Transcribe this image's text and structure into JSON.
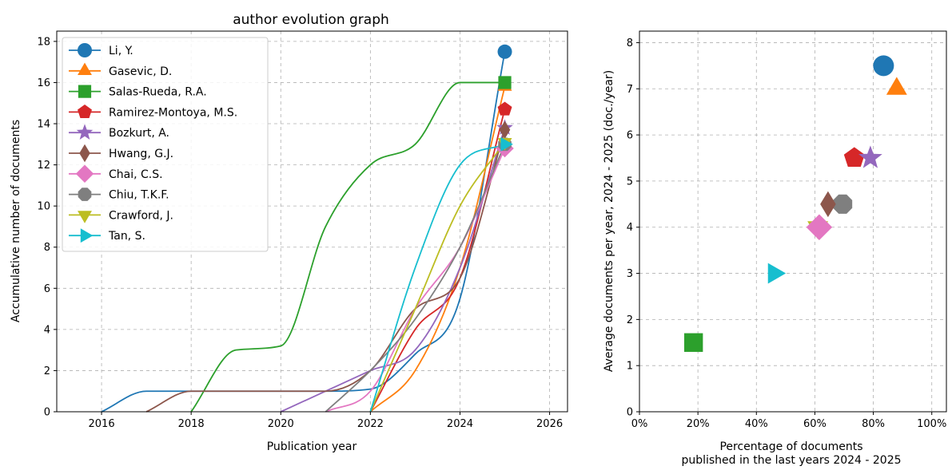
{
  "chart_data": [
    {
      "type": "line",
      "title": "author evolution graph",
      "xlabel": "Publication year",
      "ylabel": "Accumulative number of documents",
      "xlim": [
        2015,
        2026.4
      ],
      "ylim": [
        0,
        18.5
      ],
      "xticks": [
        2016,
        2018,
        2020,
        2022,
        2024,
        2026
      ],
      "yticks": [
        0,
        2,
        4,
        6,
        8,
        10,
        12,
        14,
        16,
        18
      ],
      "grid": true,
      "legend": "top-left",
      "series": [
        {
          "name": "Li, Y.",
          "color": "#1f77b4",
          "marker": "circle",
          "points": [
            [
              2016,
              0
            ],
            [
              2017,
              1
            ],
            [
              2018,
              1
            ],
            [
              2019,
              1
            ],
            [
              2020,
              1
            ],
            [
              2021,
              1
            ],
            [
              2022,
              1.1
            ],
            [
              2023,
              2.8
            ],
            [
              2024,
              5.5
            ],
            [
              2025,
              17.5
            ]
          ]
        },
        {
          "name": "Gasevic, D.",
          "color": "#ff7f0e",
          "marker": "triangle-up",
          "points": [
            [
              2022,
              0
            ],
            [
              2023,
              2
            ],
            [
              2024,
              7
            ],
            [
              2025,
              15.8
            ]
          ]
        },
        {
          "name": "Salas-Rueda, R.A.",
          "color": "#2ca02c",
          "marker": "square",
          "points": [
            [
              2018,
              0
            ],
            [
              2019,
              3
            ],
            [
              2020,
              3.2
            ],
            [
              2021,
              9
            ],
            [
              2022,
              12
            ],
            [
              2023,
              13
            ],
            [
              2024,
              16
            ],
            [
              2025,
              16
            ]
          ]
        },
        {
          "name": "Ramirez-Montoya, M.S.",
          "color": "#d62728",
          "marker": "pentagon",
          "points": [
            [
              2022,
              0
            ],
            [
              2023,
              4
            ],
            [
              2024,
              6.5
            ],
            [
              2025,
              14.7
            ]
          ]
        },
        {
          "name": "Bozkurt, A.",
          "color": "#9467bd",
          "marker": "star",
          "points": [
            [
              2020,
              0
            ],
            [
              2021,
              1
            ],
            [
              2022,
              2
            ],
            [
              2023,
              3
            ],
            [
              2024,
              7
            ],
            [
              2025,
              13.8
            ]
          ]
        },
        {
          "name": "Hwang, G.J.",
          "color": "#8c564b",
          "marker": "diamond-thin",
          "points": [
            [
              2017,
              0
            ],
            [
              2018,
              1
            ],
            [
              2019,
              1
            ],
            [
              2020,
              1
            ],
            [
              2021,
              1
            ],
            [
              2022,
              2
            ],
            [
              2023,
              5
            ],
            [
              2024,
              6.5
            ],
            [
              2025,
              13.7
            ]
          ]
        },
        {
          "name": "Chai, C.S.",
          "color": "#e377c2",
          "marker": "diamond",
          "points": [
            [
              2021,
              0
            ],
            [
              2022,
              1
            ],
            [
              2023,
              5
            ],
            [
              2024,
              8
            ],
            [
              2025,
              12.8
            ]
          ]
        },
        {
          "name": "Chiu, T.K.F.",
          "color": "#7f7f7f",
          "marker": "octagon",
          "points": [
            [
              2021,
              0
            ],
            [
              2022,
              2
            ],
            [
              2023,
              4.5
            ],
            [
              2024,
              8
            ],
            [
              2025,
              13
            ]
          ]
        },
        {
          "name": "Crawford, J.",
          "color": "#bcbd22",
          "marker": "triangle-down",
          "points": [
            [
              2022,
              0
            ],
            [
              2023,
              5
            ],
            [
              2024,
              10
            ],
            [
              2025,
              13.1
            ]
          ]
        },
        {
          "name": "Tan, S.",
          "color": "#17becf",
          "marker": "triangle-right",
          "points": [
            [
              2022,
              0
            ],
            [
              2023,
              7
            ],
            [
              2024,
              12
            ],
            [
              2025,
              13
            ]
          ]
        }
      ]
    },
    {
      "type": "scatter",
      "title": "",
      "xlabel": [
        "Percentage of documents",
        "published in the last years 2024 - 2025"
      ],
      "ylabel": "Average documents per year, 2024 - 2025 (doc./year)",
      "xlim": [
        0,
        1.05
      ],
      "ylim": [
        0,
        8.25
      ],
      "xticks": [
        0,
        0.2,
        0.4,
        0.6,
        0.8,
        1.0
      ],
      "xticklabels": [
        "0%",
        "20%",
        "40%",
        "60%",
        "80%",
        "100%"
      ],
      "yticks": [
        0,
        1,
        2,
        3,
        4,
        5,
        6,
        7,
        8
      ],
      "grid": true,
      "points": [
        {
          "author": "Li, Y.",
          "x": 0.835,
          "y": 7.5,
          "color": "#1f77b4",
          "marker": "circle"
        },
        {
          "author": "Gasevic, D.",
          "x": 0.88,
          "y": 7.0,
          "color": "#ff7f0e",
          "marker": "triangle-up"
        },
        {
          "author": "Salas-Rueda, R.A.",
          "x": 0.185,
          "y": 1.5,
          "color": "#2ca02c",
          "marker": "square"
        },
        {
          "author": "Ramirez-Montoya, M.S.",
          "x": 0.735,
          "y": 5.5,
          "color": "#d62728",
          "marker": "pentagon"
        },
        {
          "author": "Bozkurt, A.",
          "x": 0.79,
          "y": 5.5,
          "color": "#9467bd",
          "marker": "star"
        },
        {
          "author": "Crawford, J.",
          "x": 0.61,
          "y": 4.0,
          "color": "#bcbd22",
          "marker": "triangle-down"
        },
        {
          "author": "Chiu, T.K.F.",
          "x": 0.695,
          "y": 4.5,
          "color": "#7f7f7f",
          "marker": "octagon"
        },
        {
          "author": "Hwang, G.J.",
          "x": 0.645,
          "y": 4.5,
          "color": "#8c564b",
          "marker": "diamond-thin"
        },
        {
          "author": "Chai, C.S.",
          "x": 0.615,
          "y": 4.0,
          "color": "#e377c2",
          "marker": "diamond"
        },
        {
          "author": "Tan, S.",
          "x": 0.46,
          "y": 3.0,
          "color": "#17becf",
          "marker": "triangle-right"
        }
      ]
    }
  ]
}
